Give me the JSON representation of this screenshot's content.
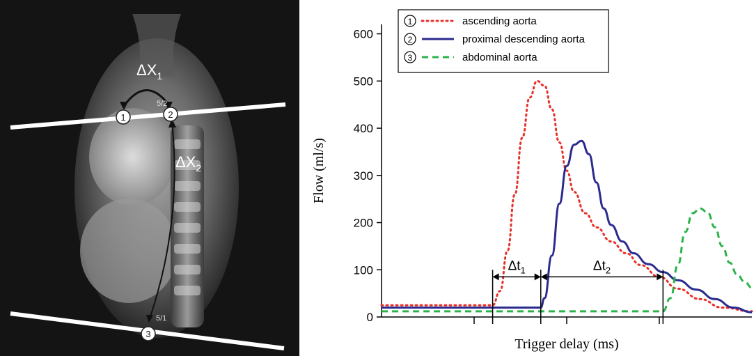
{
  "mri": {
    "markers": [
      "1",
      "2",
      "3"
    ],
    "slice_labels": [
      "5/2",
      "5/1"
    ],
    "distance_labels": {
      "dx1": "ΔX",
      "dx1_sub": "1",
      "dx2": "ΔX",
      "dx2_sub": "2"
    }
  },
  "chart_data": {
    "type": "line",
    "xlabel": "Trigger delay (ms)",
    "ylabel": "Flow (ml/s)",
    "ylim": [
      0,
      600
    ],
    "yticks": [
      0,
      100,
      200,
      300,
      400,
      500,
      600
    ],
    "xlim": [
      0,
      1
    ],
    "legend_position": "top-left",
    "series": [
      {
        "marker": "1",
        "name": "ascending aorta",
        "style": "dotted",
        "color": "#e8302a",
        "x": [
          0,
          0.3,
          0.32,
          0.34,
          0.36,
          0.38,
          0.4,
          0.42,
          0.44,
          0.46,
          0.48,
          0.5,
          0.52,
          0.55,
          0.58,
          0.62,
          0.66,
          0.7,
          0.75,
          0.8,
          0.86,
          0.92,
          1.0
        ],
        "y": [
          25,
          25,
          55,
          140,
          260,
          380,
          465,
          500,
          490,
          440,
          370,
          310,
          265,
          220,
          190,
          160,
          135,
          110,
          85,
          60,
          38,
          20,
          12
        ]
      },
      {
        "marker": "2",
        "name": "proximal descending aorta",
        "style": "solid",
        "color": "#2b2b8f",
        "x": [
          0,
          0.43,
          0.44,
          0.46,
          0.48,
          0.5,
          0.52,
          0.54,
          0.56,
          0.58,
          0.6,
          0.62,
          0.65,
          0.68,
          0.72,
          0.76,
          0.8,
          0.85,
          0.9,
          0.95,
          1.0
        ],
        "y": [
          20,
          20,
          40,
          130,
          240,
          320,
          365,
          373,
          345,
          285,
          230,
          195,
          160,
          135,
          112,
          95,
          78,
          58,
          38,
          20,
          10
        ]
      },
      {
        "marker": "3",
        "name": "abdominal aorta",
        "style": "dashed",
        "color": "#2bb34a",
        "x": [
          0,
          0.76,
          0.78,
          0.8,
          0.82,
          0.84,
          0.86,
          0.88,
          0.9,
          0.92,
          0.94,
          0.96,
          0.98,
          1.0
        ],
        "y": [
          12,
          12,
          40,
          110,
          180,
          220,
          230,
          222,
          190,
          150,
          115,
          90,
          75,
          62
        ]
      }
    ],
    "annotations": [
      {
        "label": "Δt",
        "sub": "1",
        "x_start": 0.3,
        "x_end": 0.43
      },
      {
        "label": "Δt",
        "sub": "2",
        "x_start": 0.43,
        "x_end": 0.76
      }
    ]
  }
}
